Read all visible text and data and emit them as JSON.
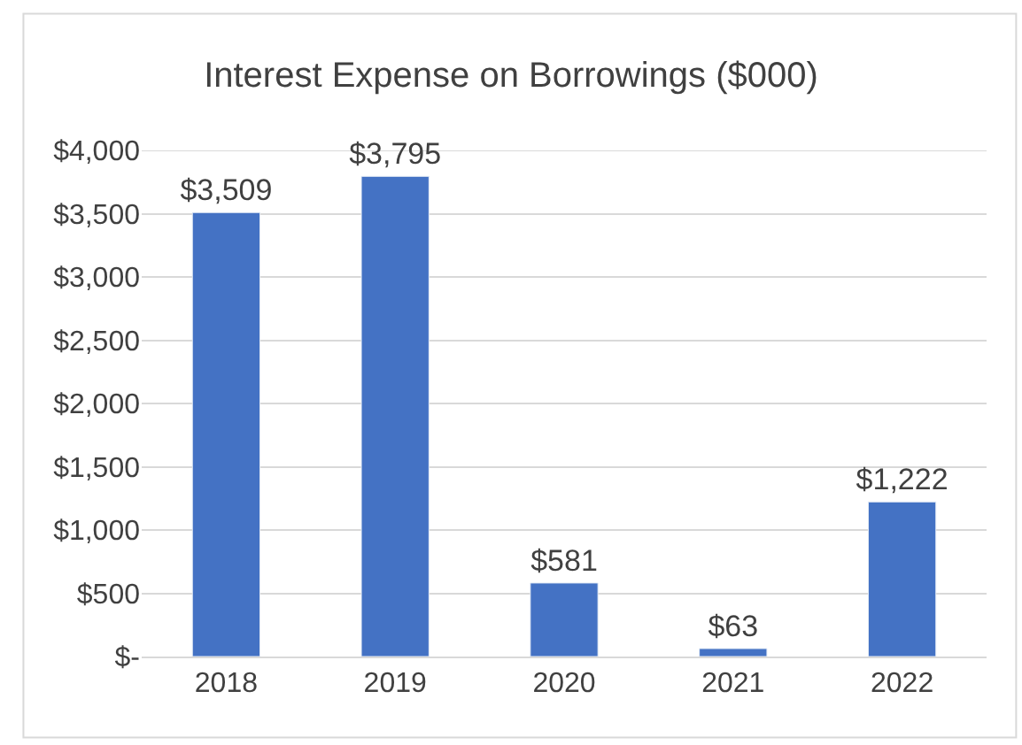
{
  "chart_data": {
    "type": "bar",
    "title": "Interest Expense on Borrowings ($000)",
    "categories": [
      "2018",
      "2019",
      "2020",
      "2021",
      "2022"
    ],
    "series": [
      {
        "color": "#4472c4",
        "values": [
          3509,
          3795,
          581,
          63,
          1222
        ],
        "value_labels": [
          "$3,509",
          "$3,795",
          "$581",
          "$63",
          "$1,222"
        ]
      }
    ],
    "ylim": [
      0,
      4000
    ],
    "yticks": [
      {
        "value": 0,
        "label": "$-"
      },
      {
        "value": 500,
        "label": "$500"
      },
      {
        "value": 1000,
        "label": "$1,000"
      },
      {
        "value": 1500,
        "label": "$1,500"
      },
      {
        "value": 2000,
        "label": "$2,000"
      },
      {
        "value": 2500,
        "label": "$2,500"
      },
      {
        "value": 3000,
        "label": "$3,000"
      },
      {
        "value": 3500,
        "label": "$3,500"
      },
      {
        "value": 4000,
        "label": "$4,000"
      }
    ],
    "grid": "y"
  }
}
